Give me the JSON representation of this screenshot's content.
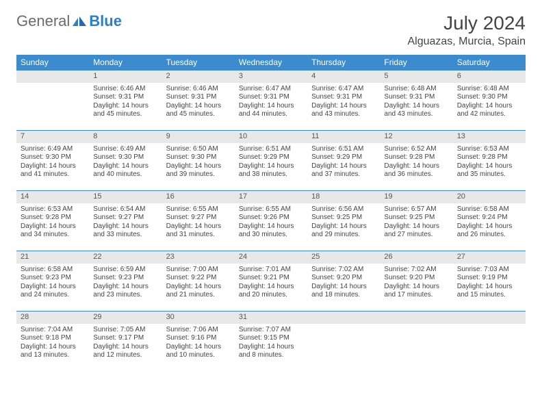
{
  "logo": {
    "word1": "General",
    "word2": "Blue"
  },
  "title": "July 2024",
  "location": "Alguazas, Murcia, Spain",
  "colors": {
    "header_bg": "#3b8bce",
    "header_text": "#ffffff",
    "daynum_bg": "#e8e8e8",
    "rule": "#3b8bce",
    "body_text": "#444444",
    "logo_gray": "#6b6b6b",
    "logo_blue": "#2a7fc9"
  },
  "day_headers": [
    "Sunday",
    "Monday",
    "Tuesday",
    "Wednesday",
    "Thursday",
    "Friday",
    "Saturday"
  ],
  "weeks": [
    [
      null,
      {
        "n": "1",
        "sr": "6:46 AM",
        "ss": "9:31 PM",
        "dl": "14 hours and 45 minutes."
      },
      {
        "n": "2",
        "sr": "6:46 AM",
        "ss": "9:31 PM",
        "dl": "14 hours and 45 minutes."
      },
      {
        "n": "3",
        "sr": "6:47 AM",
        "ss": "9:31 PM",
        "dl": "14 hours and 44 minutes."
      },
      {
        "n": "4",
        "sr": "6:47 AM",
        "ss": "9:31 PM",
        "dl": "14 hours and 43 minutes."
      },
      {
        "n": "5",
        "sr": "6:48 AM",
        "ss": "9:31 PM",
        "dl": "14 hours and 43 minutes."
      },
      {
        "n": "6",
        "sr": "6:48 AM",
        "ss": "9:30 PM",
        "dl": "14 hours and 42 minutes."
      }
    ],
    [
      {
        "n": "7",
        "sr": "6:49 AM",
        "ss": "9:30 PM",
        "dl": "14 hours and 41 minutes."
      },
      {
        "n": "8",
        "sr": "6:49 AM",
        "ss": "9:30 PM",
        "dl": "14 hours and 40 minutes."
      },
      {
        "n": "9",
        "sr": "6:50 AM",
        "ss": "9:30 PM",
        "dl": "14 hours and 39 minutes."
      },
      {
        "n": "10",
        "sr": "6:51 AM",
        "ss": "9:29 PM",
        "dl": "14 hours and 38 minutes."
      },
      {
        "n": "11",
        "sr": "6:51 AM",
        "ss": "9:29 PM",
        "dl": "14 hours and 37 minutes."
      },
      {
        "n": "12",
        "sr": "6:52 AM",
        "ss": "9:28 PM",
        "dl": "14 hours and 36 minutes."
      },
      {
        "n": "13",
        "sr": "6:53 AM",
        "ss": "9:28 PM",
        "dl": "14 hours and 35 minutes."
      }
    ],
    [
      {
        "n": "14",
        "sr": "6:53 AM",
        "ss": "9:28 PM",
        "dl": "14 hours and 34 minutes."
      },
      {
        "n": "15",
        "sr": "6:54 AM",
        "ss": "9:27 PM",
        "dl": "14 hours and 33 minutes."
      },
      {
        "n": "16",
        "sr": "6:55 AM",
        "ss": "9:27 PM",
        "dl": "14 hours and 31 minutes."
      },
      {
        "n": "17",
        "sr": "6:55 AM",
        "ss": "9:26 PM",
        "dl": "14 hours and 30 minutes."
      },
      {
        "n": "18",
        "sr": "6:56 AM",
        "ss": "9:25 PM",
        "dl": "14 hours and 29 minutes."
      },
      {
        "n": "19",
        "sr": "6:57 AM",
        "ss": "9:25 PM",
        "dl": "14 hours and 27 minutes."
      },
      {
        "n": "20",
        "sr": "6:58 AM",
        "ss": "9:24 PM",
        "dl": "14 hours and 26 minutes."
      }
    ],
    [
      {
        "n": "21",
        "sr": "6:58 AM",
        "ss": "9:23 PM",
        "dl": "14 hours and 24 minutes."
      },
      {
        "n": "22",
        "sr": "6:59 AM",
        "ss": "9:23 PM",
        "dl": "14 hours and 23 minutes."
      },
      {
        "n": "23",
        "sr": "7:00 AM",
        "ss": "9:22 PM",
        "dl": "14 hours and 21 minutes."
      },
      {
        "n": "24",
        "sr": "7:01 AM",
        "ss": "9:21 PM",
        "dl": "14 hours and 20 minutes."
      },
      {
        "n": "25",
        "sr": "7:02 AM",
        "ss": "9:20 PM",
        "dl": "14 hours and 18 minutes."
      },
      {
        "n": "26",
        "sr": "7:02 AM",
        "ss": "9:20 PM",
        "dl": "14 hours and 17 minutes."
      },
      {
        "n": "27",
        "sr": "7:03 AM",
        "ss": "9:19 PM",
        "dl": "14 hours and 15 minutes."
      }
    ],
    [
      {
        "n": "28",
        "sr": "7:04 AM",
        "ss": "9:18 PM",
        "dl": "14 hours and 13 minutes."
      },
      {
        "n": "29",
        "sr": "7:05 AM",
        "ss": "9:17 PM",
        "dl": "14 hours and 12 minutes."
      },
      {
        "n": "30",
        "sr": "7:06 AM",
        "ss": "9:16 PM",
        "dl": "14 hours and 10 minutes."
      },
      {
        "n": "31",
        "sr": "7:07 AM",
        "ss": "9:15 PM",
        "dl": "14 hours and 8 minutes."
      },
      null,
      null,
      null
    ]
  ],
  "labels": {
    "sunrise": "Sunrise:",
    "sunset": "Sunset:",
    "daylight": "Daylight:"
  }
}
